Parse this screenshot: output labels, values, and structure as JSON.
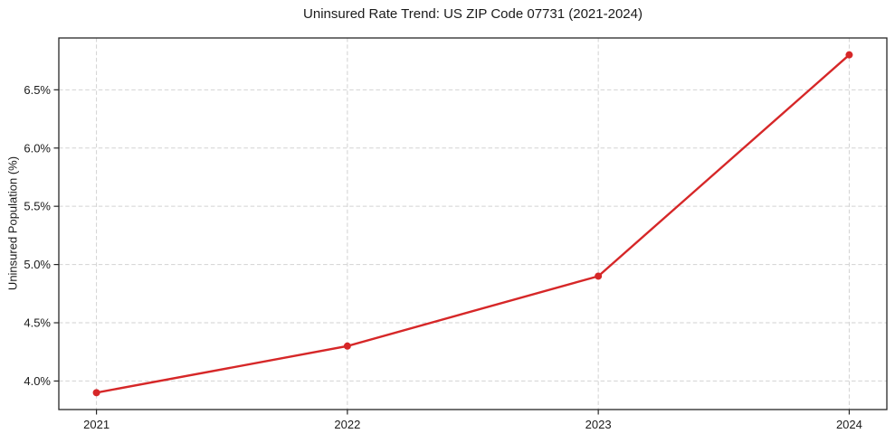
{
  "page": {
    "background_color": "#ffffff"
  },
  "chart_data": {
    "type": "line",
    "title": "Uninsured Rate Trend: US ZIP Code 07731 (2021-2024)",
    "xlabel": "",
    "ylabel": "Uninsured Population (%)",
    "x": [
      2021,
      2022,
      2023,
      2024
    ],
    "series": [
      {
        "name": "Uninsured rate",
        "values": [
          3.9,
          4.3,
          4.9,
          6.8
        ],
        "color": "#d62728",
        "marker": "circle"
      }
    ],
    "x_tick_labels": [
      "2021",
      "2022",
      "2023",
      "2024"
    ],
    "y_ticks": [
      4.0,
      4.5,
      5.0,
      5.5,
      6.0,
      6.5
    ],
    "y_tick_labels": [
      "4.0%",
      "4.5%",
      "5.0%",
      "5.5%",
      "6.0%",
      "6.5%"
    ],
    "xlim": [
      2020.85,
      2024.15
    ],
    "ylim": [
      3.755,
      6.945
    ],
    "grid": true,
    "grid_style": "dashed",
    "legend_position": "none",
    "colors": {
      "line": "#d62728",
      "grid": "#d2d2d2",
      "spine": "#262626",
      "text": "#1a1a1a"
    }
  }
}
